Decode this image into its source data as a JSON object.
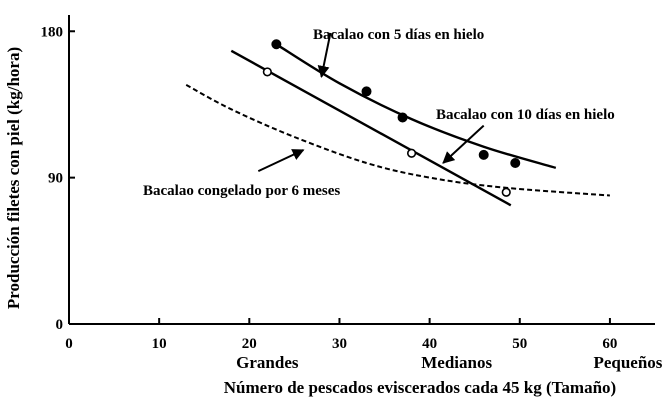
{
  "chart_data": {
    "type": "scatter",
    "xlabel": "Número de pescados eviscerados cada 45 kg (Tamaño)",
    "ylabel": "Producción filetes con piel (kg/hora)",
    "xlim": [
      0,
      65
    ],
    "ylim": [
      0,
      190
    ],
    "x_ticks": [
      "0",
      "10",
      "20",
      "30",
      "40",
      "50",
      "60"
    ],
    "y_ticks": [
      "0",
      "90",
      "180"
    ],
    "x_category_labels": [
      {
        "x": 22,
        "label": "Grandes"
      },
      {
        "x": 43,
        "label": "Medianos"
      },
      {
        "x": 62,
        "label": "Pequeños"
      }
    ],
    "grid": false,
    "series": [
      {
        "name": "Bacalao con 5 días en hielo",
        "marker": "filled-circle",
        "line": "solid",
        "points": [
          [
            23,
            172
          ],
          [
            33,
            143
          ],
          [
            37,
            127
          ],
          [
            46,
            104
          ],
          [
            49.5,
            99
          ]
        ],
        "fit": [
          [
            23,
            172
          ],
          [
            30,
            148
          ],
          [
            38,
            126
          ],
          [
            46,
            109
          ],
          [
            54,
            96
          ]
        ]
      },
      {
        "name": "Bacalao con 10 días en hielo",
        "marker": "open-circle",
        "line": "solid",
        "points": [
          [
            22,
            155
          ],
          [
            38,
            105
          ],
          [
            48.5,
            81
          ]
        ],
        "fit": [
          [
            18,
            168
          ],
          [
            49,
            73
          ]
        ]
      },
      {
        "name": "Bacalao congelado por 6 meses",
        "marker": "none",
        "line": "dashed",
        "fit": [
          [
            13,
            147
          ],
          [
            18,
            132
          ],
          [
            25,
            115
          ],
          [
            33,
            99
          ],
          [
            40,
            90
          ],
          [
            48,
            84
          ],
          [
            60,
            79
          ]
        ]
      }
    ],
    "annotations": [
      {
        "text": "Bacalao con 5 días en hielo",
        "arrow_from": [
          29,
          179
        ],
        "arrow_to": [
          28,
          152
        ]
      },
      {
        "text": "Bacalao con 10 días en hielo",
        "arrow_from": [
          46,
          122
        ],
        "arrow_to": [
          41.5,
          99
        ]
      },
      {
        "text": "Bacalao congelado por 6 meses",
        "arrow_from": [
          21,
          94
        ],
        "arrow_to": [
          26,
          107
        ]
      }
    ]
  }
}
